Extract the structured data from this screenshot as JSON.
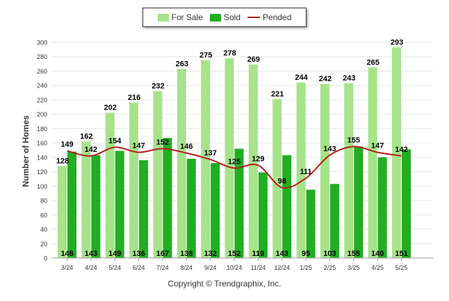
{
  "legend": {
    "for_sale": "For Sale",
    "sold": "Sold",
    "pended": "Pended"
  },
  "copyright": "Copyright © Trendgraphix, Inc.",
  "colors": {
    "for_sale": "#a6e38a",
    "sold": "#22ad22",
    "pended": "#b21c1c"
  },
  "chart_data": {
    "type": "bar",
    "title": "",
    "xlabel": "",
    "ylabel": "Number of Homes",
    "ylim": [
      0,
      300
    ],
    "yticks": [
      0,
      20,
      40,
      60,
      80,
      100,
      120,
      140,
      160,
      180,
      200,
      220,
      240,
      260,
      280,
      300
    ],
    "grid": true,
    "legend_position": "top-center",
    "categories": [
      "3/24",
      "4/24",
      "5/24",
      "6/24",
      "7/24",
      "8/24",
      "9/24",
      "10/24",
      "11/24",
      "12/24",
      "1/25",
      "2/25",
      "3/25",
      "4/25",
      "5/25"
    ],
    "series": [
      {
        "name": "For Sale",
        "kind": "bar",
        "values": [
          128,
          162,
          202,
          216,
          232,
          263,
          275,
          278,
          269,
          221,
          244,
          242,
          243,
          265,
          293
        ]
      },
      {
        "name": "Sold",
        "kind": "bar",
        "values": [
          148,
          143,
          149,
          136,
          167,
          138,
          132,
          152,
          119,
          143,
          95,
          103,
          155,
          140,
          151
        ]
      },
      {
        "name": "Pended",
        "kind": "line",
        "values": [
          149,
          142,
          154,
          147,
          152,
          146,
          137,
          125,
          129,
          98,
          111,
          143,
          155,
          147,
          142
        ]
      }
    ]
  }
}
